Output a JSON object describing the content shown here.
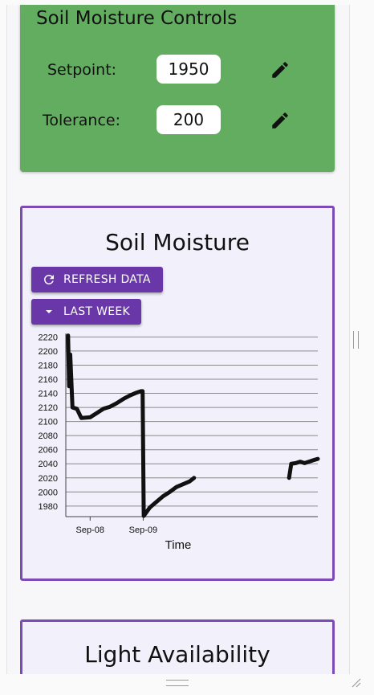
{
  "controls": {
    "title": "Soil Moisture Controls",
    "setpoint_label": "Setpoint:",
    "setpoint_value": "1950",
    "tolerance_label": "Tolerance:",
    "tolerance_value": "200"
  },
  "moisture_card": {
    "title": "Soil Moisture",
    "refresh_label": "REFRESH DATA",
    "range_label": "LAST WEEK"
  },
  "light_card": {
    "title": "Light Availability"
  },
  "colors": {
    "controls_bg": "#62ad5f",
    "card_border": "#7d4bb5",
    "button_bg": "#6a37a8",
    "line": "#111111"
  },
  "chart_data": {
    "type": "line",
    "title": "",
    "xlabel": "Time",
    "ylabel": "",
    "ylim": [
      1965,
      2225
    ],
    "yticks": [
      2220,
      2200,
      2180,
      2160,
      2140,
      2120,
      2100,
      2080,
      2060,
      2040,
      2020,
      2000,
      1980
    ],
    "xticks": [
      "Sep-08",
      "Sep-09"
    ],
    "grid": true,
    "series": [
      {
        "name": "",
        "segments": [
          [
            [
              "09-07 14:00",
              2222
            ],
            [
              "09-07 14:30",
              2150
            ],
            [
              "09-07 15:00",
              2195
            ],
            [
              "09-07 16:00",
              2120
            ],
            [
              "09-07 18:00",
              2118
            ],
            [
              "09-07 20:00",
              2105
            ],
            [
              "09-08 00:00",
              2106
            ],
            [
              "09-08 03:00",
              2112
            ],
            [
              "09-08 06:00",
              2118
            ],
            [
              "09-08 09:00",
              2121
            ],
            [
              "09-08 12:00",
              2126
            ],
            [
              "09-08 15:00",
              2132
            ],
            [
              "09-08 18:00",
              2137
            ],
            [
              "09-08 21:00",
              2141
            ],
            [
              "09-08 23:00",
              2143
            ],
            [
              "09-08 23:45",
              2143
            ],
            [
              "09-09 00:15",
              1966
            ],
            [
              "09-09 03:00",
              1978
            ],
            [
              "09-09 06:00",
              1986
            ],
            [
              "09-09 09:00",
              1994
            ],
            [
              "09-09 12:00",
              2000
            ],
            [
              "09-09 15:00",
              2007
            ],
            [
              "09-09 18:00",
              2011
            ],
            [
              "09-09 21:00",
              2015
            ],
            [
              "09-09 23:00",
              2020
            ]
          ],
          [
            [
              "09-11 18:00",
              2020
            ],
            [
              "09-11 19:00",
              2040
            ],
            [
              "09-11 21:00",
              2041
            ],
            [
              "09-11 23:00",
              2043
            ],
            [
              "09-12 01:00",
              2041
            ],
            [
              "09-12 03:00",
              2043
            ],
            [
              "09-12 05:00",
              2045
            ],
            [
              "09-12 07:00",
              2047
            ]
          ]
        ]
      }
    ]
  }
}
